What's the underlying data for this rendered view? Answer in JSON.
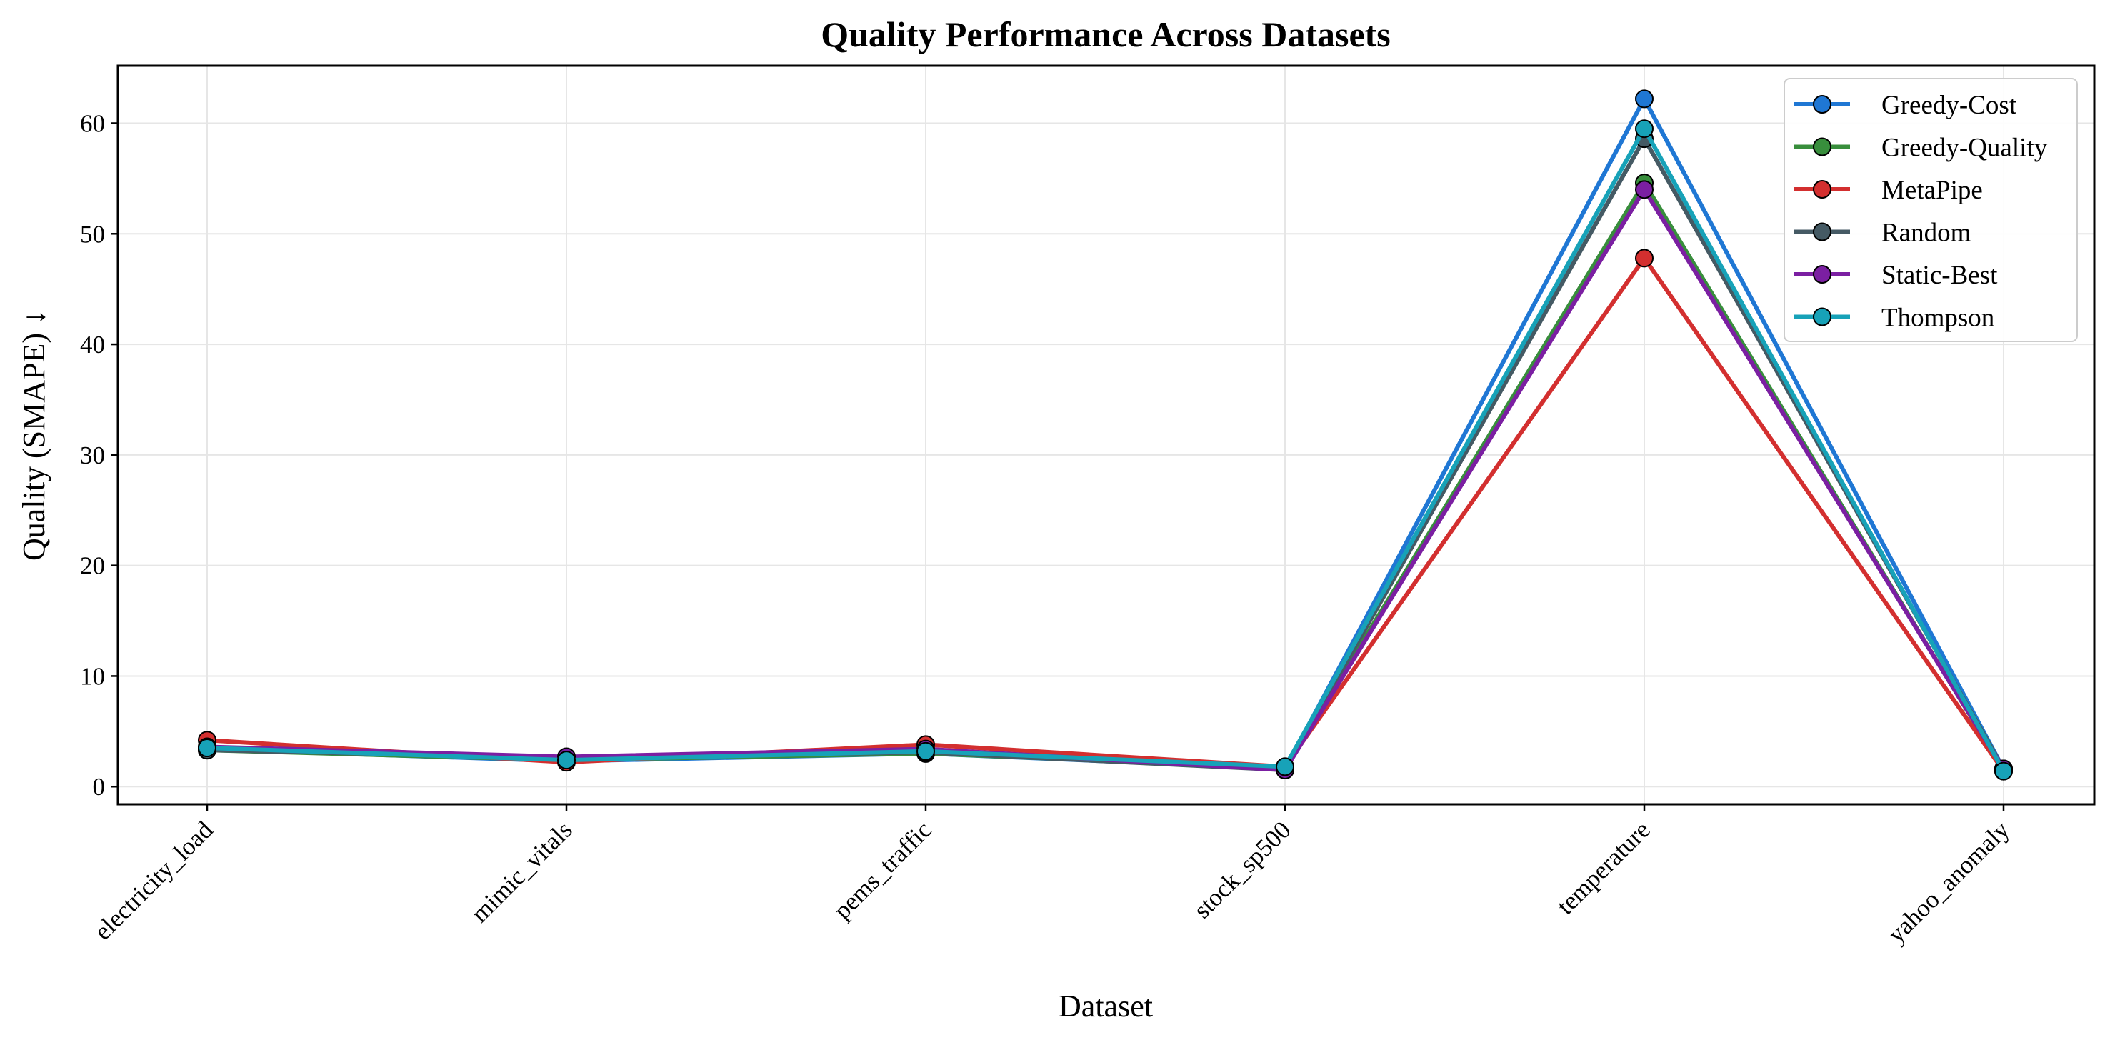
{
  "chart_data": {
    "type": "line",
    "title": "Quality Performance Across Datasets",
    "xlabel": "Dataset",
    "ylabel": "Quality (SMAPE) ↓",
    "categories": [
      "electricity_load",
      "mimic_vitals",
      "pems_traffic",
      "stock_sp500",
      "temperature",
      "yahoo_anomaly"
    ],
    "ylim": [
      -1.6,
      65.2
    ],
    "yticks": [
      0,
      10,
      20,
      30,
      40,
      50,
      60
    ],
    "grid": true,
    "legend_position": "top-right",
    "series": [
      {
        "name": "Greedy-Cost",
        "color": "#1f77d4",
        "values": [
          3.4,
          2.3,
          3.0,
          1.6,
          62.2,
          1.6
        ]
      },
      {
        "name": "Greedy-Quality",
        "color": "#388e3c",
        "values": [
          3.3,
          2.4,
          3.0,
          1.7,
          54.6,
          1.5
        ]
      },
      {
        "name": "MetaPipe",
        "color": "#d32f2f",
        "values": [
          4.2,
          2.2,
          3.8,
          1.8,
          47.8,
          1.4
        ]
      },
      {
        "name": "Random",
        "color": "#455a64",
        "values": [
          3.3,
          2.6,
          3.1,
          1.5,
          58.6,
          1.6
        ]
      },
      {
        "name": "Static-Best",
        "color": "#7b1fa2",
        "values": [
          3.6,
          2.7,
          3.4,
          1.5,
          54.0,
          1.6
        ]
      },
      {
        "name": "Thompson",
        "color": "#17a2b8",
        "values": [
          3.5,
          2.4,
          3.2,
          1.8,
          59.5,
          1.4
        ]
      }
    ]
  }
}
